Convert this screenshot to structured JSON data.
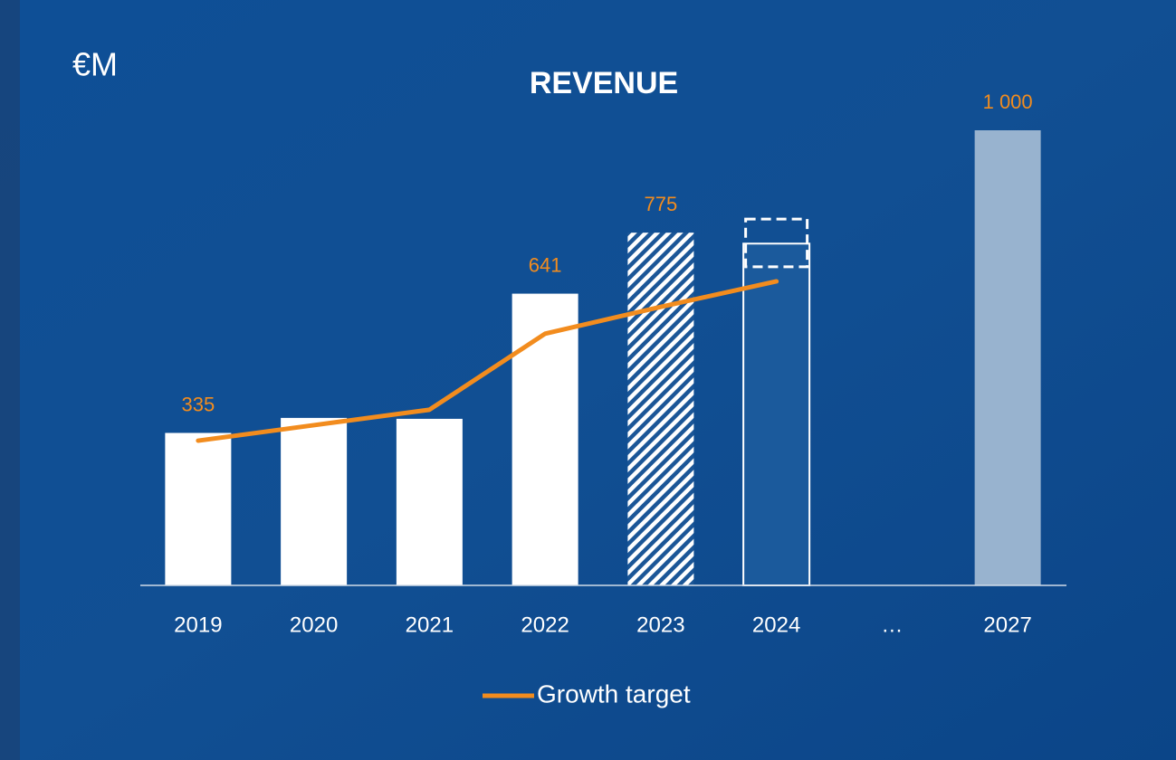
{
  "chart_data": {
    "type": "bar",
    "title": "REVENUE",
    "unit_label": "€M",
    "categories": [
      "2019",
      "2020",
      "2021",
      "2022",
      "2023",
      "2024",
      "…",
      "2027"
    ],
    "values": [
      335,
      368,
      366,
      641,
      775,
      751,
      null,
      1000
    ],
    "value_labels": [
      "335",
      null,
      null,
      "641",
      "775",
      null,
      null,
      "1 000"
    ],
    "bar_styles": [
      "solid",
      "solid",
      "solid",
      "solid",
      "hatched",
      "outline",
      null,
      "light"
    ],
    "ranges": [
      null,
      null,
      null,
      null,
      null,
      [
        700,
        805
      ],
      null,
      null
    ],
    "color": "#ffffff",
    "light_color": "#98b3cf",
    "label_color": "#f28c1e",
    "ylim": [
      0,
      1000
    ],
    "line": {
      "name": "Growth target",
      "color": "#f28c1e",
      "values": [
        318,
        352,
        386,
        553,
        612,
        668,
        null,
        null
      ]
    },
    "legend": "bottom"
  }
}
